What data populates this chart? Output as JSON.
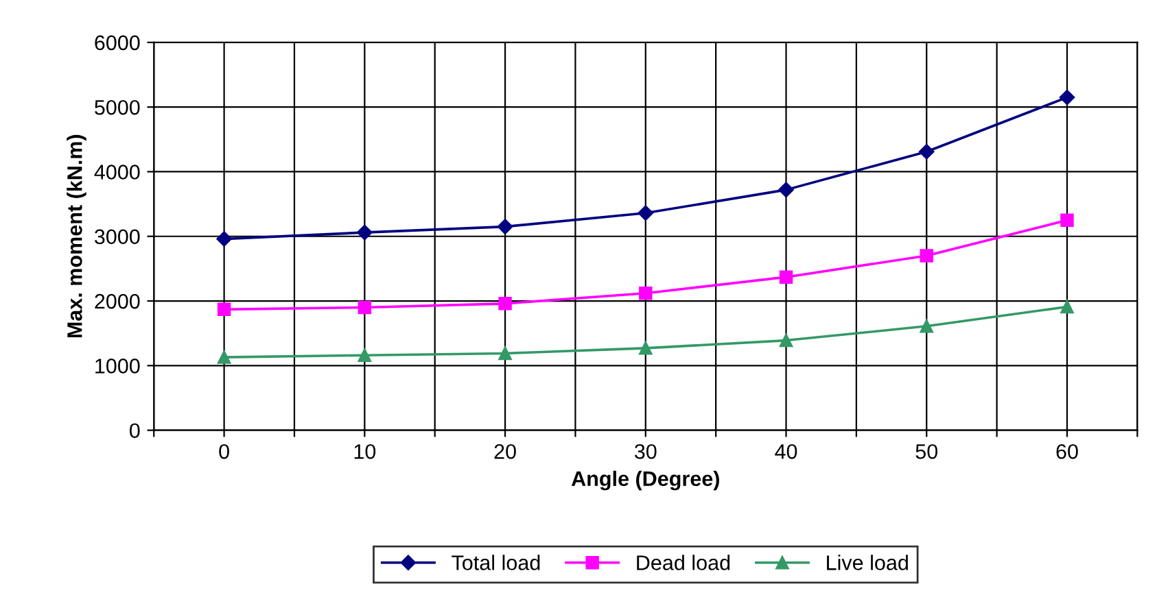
{
  "chart_data": {
    "type": "line",
    "xlabel": "Angle (Degree)",
    "ylabel": "Max. moment (kN.m)",
    "x": [
      0,
      10,
      20,
      30,
      40,
      50,
      60
    ],
    "xlim": [
      -5,
      65
    ],
    "xticks": [
      {
        "value": -5,
        "label": null
      },
      0,
      {
        "value": 5,
        "label": null
      },
      10,
      {
        "value": 15,
        "label": null
      },
      20,
      {
        "value": 25,
        "label": null
      },
      30,
      {
        "value": 35,
        "label": null
      },
      40,
      {
        "value": 45,
        "label": null
      },
      50,
      {
        "value": 55,
        "label": null
      },
      60,
      {
        "value": 65,
        "label": null
      }
    ],
    "ylim": [
      0,
      6000
    ],
    "yticks": [
      0,
      1000,
      2000,
      3000,
      4000,
      5000,
      6000
    ],
    "grid": true,
    "legend": "bottom",
    "series": [
      {
        "name": "Total load",
        "color": "#000080",
        "marker": "diamond",
        "values": [
          2960,
          3060,
          3150,
          3360,
          3720,
          4310,
          5150
        ]
      },
      {
        "name": "Dead load",
        "color": "#ff00ff",
        "marker": "square",
        "values": [
          1870,
          1900,
          1960,
          2120,
          2370,
          2700,
          3250
        ]
      },
      {
        "name": "Live load",
        "color": "#339966",
        "marker": "triangle",
        "values": [
          1130,
          1160,
          1190,
          1270,
          1390,
          1610,
          1910
        ]
      }
    ]
  }
}
